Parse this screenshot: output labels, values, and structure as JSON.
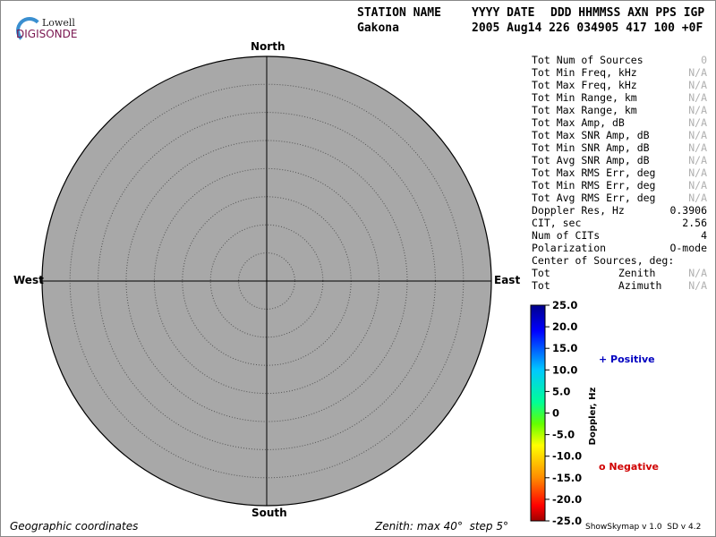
{
  "logo": {
    "top": "Lowell",
    "bottom": "DIGISONDE"
  },
  "header": {
    "row1": [
      "STATION NAME",
      "YYYY DATE",
      "DDD HHMMSS AXN PPS IGP"
    ],
    "row2": [
      "Gakona",
      "2005 Aug14 226 034905 417 100 +0F"
    ]
  },
  "compass": {
    "north": "North",
    "south": "South",
    "east": "East",
    "west": "West"
  },
  "stats": [
    [
      "Tot Num of Sources",
      "0"
    ],
    [
      "Tot Min Freq, kHz",
      "N/A"
    ],
    [
      "Tot Max Freq, kHz",
      "N/A"
    ],
    [
      "Tot Min Range, km",
      "N/A"
    ],
    [
      "Tot Max Range, km",
      "N/A"
    ],
    [
      "Tot Max Amp, dB",
      "N/A"
    ],
    [
      "Tot Max SNR Amp, dB",
      "N/A"
    ],
    [
      "Tot Min SNR Amp, dB",
      "N/A"
    ],
    [
      "Tot Avg SNR Amp, dB",
      "N/A"
    ],
    [
      "Tot Max RMS Err, deg",
      "N/A"
    ],
    [
      "Tot Min RMS Err, deg",
      "N/A"
    ],
    [
      "Tot Avg RMS Err, deg",
      "N/A"
    ],
    [
      "Doppler Res, Hz",
      "0.3906"
    ],
    [
      "CIT, sec",
      "2.56"
    ],
    [
      "Num of CITs",
      "4"
    ],
    [
      "Polarization",
      "O-mode"
    ]
  ],
  "center_heading": "Center of Sources, deg:",
  "center_rows": [
    [
      "Tot           Zenith",
      "N/A"
    ],
    [
      "Tot           Azimuth",
      "N/A"
    ]
  ],
  "colorbar": {
    "title": "Doppler, Hz",
    "ticks": [
      "25.0",
      "20.0",
      "15.0",
      "10.0",
      "5.0",
      "0",
      "-5.0",
      "-10.0",
      "-15.0",
      "-20.0",
      "-25.0"
    ]
  },
  "legend": {
    "positive": "+ Positive",
    "negative": "o Negative"
  },
  "footer": {
    "left": "Geographic coordinates",
    "middle": "Zenith: max 40°  step 5°",
    "right": "ShowSkymap v 1.0  SD v 4.2"
  }
}
